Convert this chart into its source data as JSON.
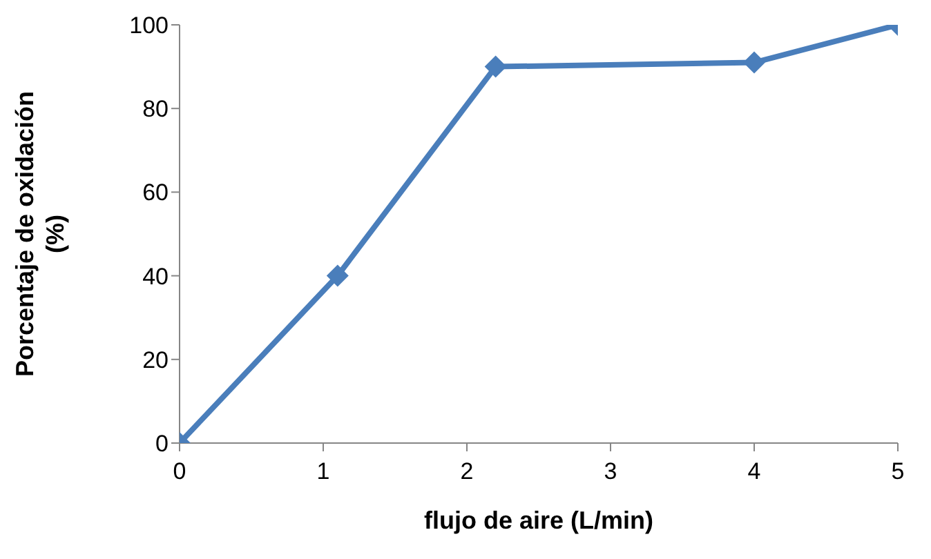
{
  "chart_data": {
    "type": "line",
    "xlabel": "flujo de aire (L/min)",
    "ylabel": "Porcentaje de oxidación (%)",
    "x": [
      0,
      1.1,
      2.2,
      4,
      5
    ],
    "series": [
      {
        "color": "#4a7ebb",
        "values": [
          0,
          40,
          90,
          91,
          100
        ]
      }
    ],
    "xlim": [
      0,
      5
    ],
    "xticks": [
      0,
      1,
      2,
      3,
      4,
      5
    ],
    "ylim": [
      0,
      100
    ],
    "yticks": [
      0,
      20,
      40,
      60,
      80,
      100
    ],
    "grid": false,
    "legend": false,
    "marker": "diamond",
    "line_style": "solid"
  }
}
